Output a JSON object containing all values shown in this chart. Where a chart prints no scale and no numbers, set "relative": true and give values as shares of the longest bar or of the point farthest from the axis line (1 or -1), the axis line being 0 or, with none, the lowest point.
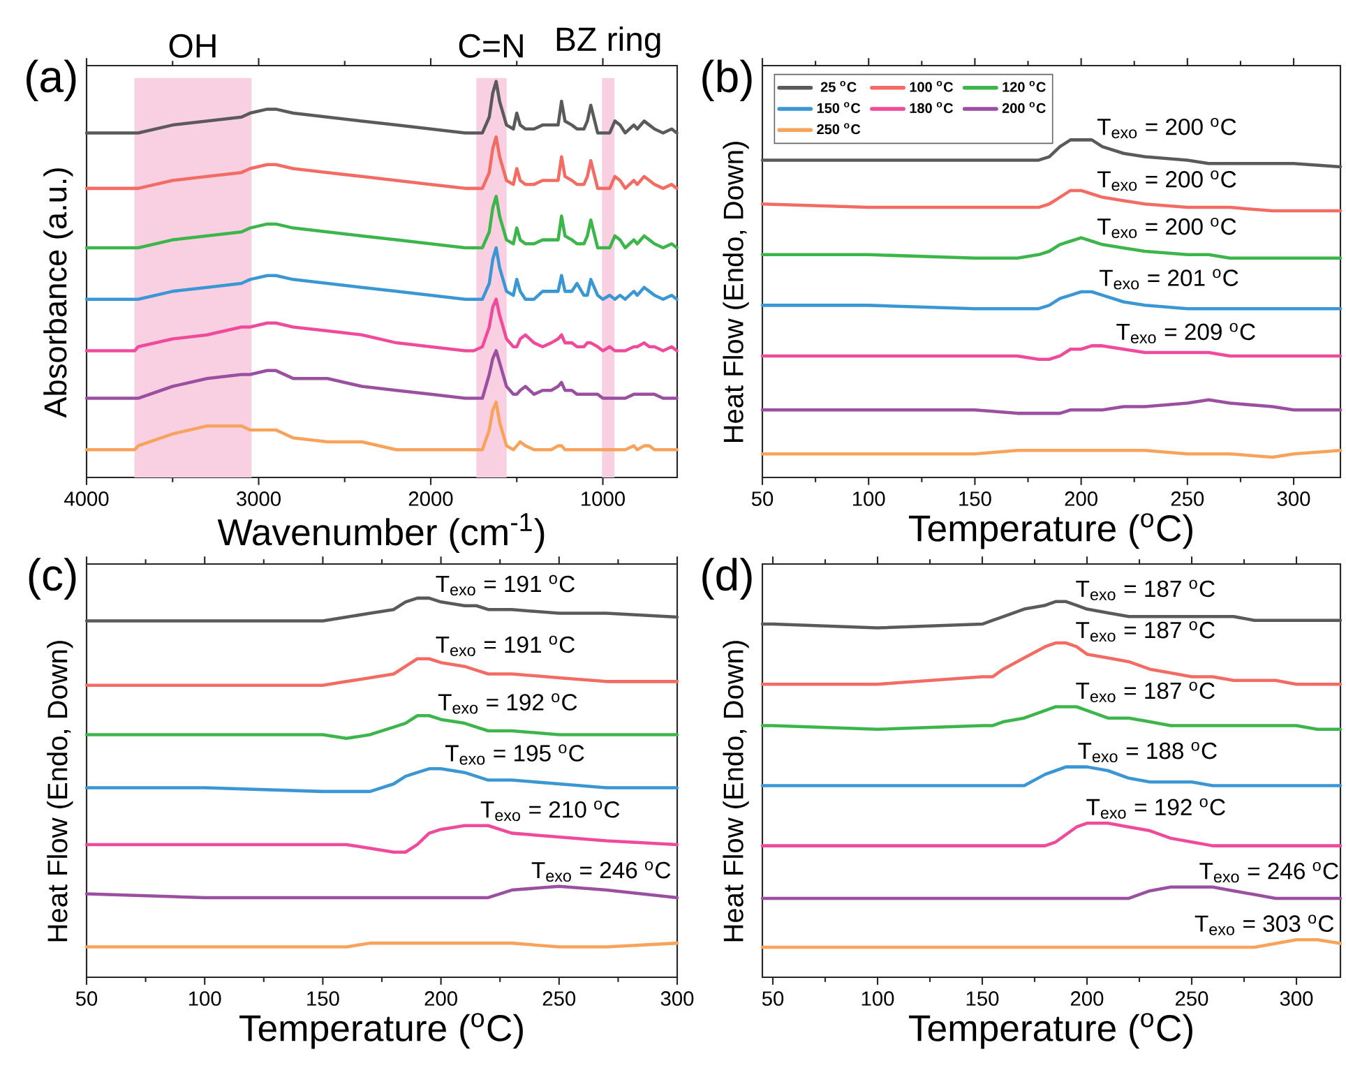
{
  "chart_data": [
    {
      "type": "line",
      "title": "(a)",
      "xlabel": "Wavenumber (cm$^{-1}$)",
      "ylabel": "Absorbance (a.u.)",
      "relative": true,
      "tick_labels": "x",
      "xlim": [
        4000,
        568
      ],
      "xticks": [
        4000,
        3000,
        2000,
        1000
      ],
      "x": [
        4000,
        3720,
        3700,
        3500,
        3300,
        3100,
        3050,
        2950,
        2900,
        2800,
        2600,
        2400,
        2200,
        2000,
        1800,
        1750,
        1700,
        1660,
        1640,
        1620,
        1600,
        1560,
        1520,
        1500,
        1480,
        1450,
        1400,
        1350,
        1300,
        1260,
        1240,
        1220,
        1180,
        1150,
        1110,
        1090,
        1070,
        1030,
        1000,
        960,
        930,
        900,
        870,
        820,
        800,
        760,
        730,
        700,
        650,
        600,
        570
      ],
      "bands": [
        {
          "axis": "x",
          "from": 3722,
          "to": 3041,
          "label": "OH",
          "color": "#f8d0e2"
        },
        {
          "axis": "x",
          "from": 1735,
          "to": 1559,
          "label": "C=N",
          "color": "#f8d0e2"
        },
        {
          "axis": "x",
          "from": 1005,
          "to": 932,
          "label": "BZ ring",
          "color": "#f8d0e2"
        }
      ],
      "series": [
        {
          "color": "#5a5a5a",
          "values": [
            0.87,
            0.87,
            0.87,
            0.89,
            0.9,
            0.91,
            0.92,
            0.93,
            0.93,
            0.92,
            0.91,
            0.9,
            0.89,
            0.88,
            0.87,
            0.87,
            0.87,
            0.91,
            0.97,
            1.0,
            0.95,
            0.89,
            0.88,
            0.92,
            0.89,
            0.88,
            0.88,
            0.89,
            0.89,
            0.89,
            0.95,
            0.9,
            0.89,
            0.88,
            0.88,
            0.9,
            0.94,
            0.87,
            0.87,
            0.87,
            0.9,
            0.89,
            0.87,
            0.89,
            0.88,
            0.9,
            0.89,
            0.88,
            0.87,
            0.88,
            0.87
          ]
        },
        {
          "color": "#f26c64",
          "values": [
            0.73,
            0.73,
            0.73,
            0.75,
            0.76,
            0.77,
            0.78,
            0.79,
            0.79,
            0.78,
            0.77,
            0.76,
            0.75,
            0.74,
            0.73,
            0.73,
            0.73,
            0.77,
            0.83,
            0.86,
            0.81,
            0.75,
            0.74,
            0.78,
            0.75,
            0.74,
            0.74,
            0.75,
            0.75,
            0.75,
            0.81,
            0.76,
            0.75,
            0.74,
            0.74,
            0.76,
            0.8,
            0.73,
            0.73,
            0.73,
            0.76,
            0.75,
            0.73,
            0.75,
            0.74,
            0.76,
            0.75,
            0.74,
            0.73,
            0.74,
            0.73
          ]
        },
        {
          "color": "#3cb54a",
          "values": [
            0.58,
            0.58,
            0.58,
            0.6,
            0.61,
            0.62,
            0.63,
            0.64,
            0.64,
            0.63,
            0.62,
            0.61,
            0.6,
            0.59,
            0.58,
            0.58,
            0.58,
            0.62,
            0.68,
            0.71,
            0.66,
            0.6,
            0.59,
            0.63,
            0.6,
            0.59,
            0.59,
            0.6,
            0.6,
            0.6,
            0.66,
            0.61,
            0.6,
            0.59,
            0.59,
            0.61,
            0.65,
            0.58,
            0.58,
            0.58,
            0.61,
            0.6,
            0.58,
            0.6,
            0.59,
            0.61,
            0.6,
            0.59,
            0.58,
            0.59,
            0.58
          ]
        },
        {
          "color": "#3b97d3",
          "values": [
            0.45,
            0.45,
            0.45,
            0.47,
            0.48,
            0.49,
            0.5,
            0.51,
            0.51,
            0.5,
            0.49,
            0.48,
            0.47,
            0.46,
            0.45,
            0.45,
            0.45,
            0.49,
            0.55,
            0.58,
            0.53,
            0.47,
            0.46,
            0.5,
            0.47,
            0.45,
            0.45,
            0.47,
            0.47,
            0.47,
            0.51,
            0.47,
            0.47,
            0.49,
            0.46,
            0.46,
            0.5,
            0.46,
            0.45,
            0.46,
            0.45,
            0.46,
            0.45,
            0.47,
            0.46,
            0.48,
            0.47,
            0.46,
            0.45,
            0.46,
            0.45
          ]
        },
        {
          "color": "#ef4a9b",
          "values": [
            0.32,
            0.32,
            0.33,
            0.35,
            0.36,
            0.38,
            0.38,
            0.39,
            0.39,
            0.38,
            0.37,
            0.36,
            0.34,
            0.33,
            0.32,
            0.32,
            0.33,
            0.38,
            0.43,
            0.45,
            0.41,
            0.35,
            0.33,
            0.33,
            0.35,
            0.36,
            0.34,
            0.33,
            0.34,
            0.35,
            0.36,
            0.34,
            0.34,
            0.33,
            0.33,
            0.34,
            0.34,
            0.33,
            0.32,
            0.33,
            0.32,
            0.32,
            0.32,
            0.33,
            0.33,
            0.34,
            0.33,
            0.33,
            0.32,
            0.33,
            0.32
          ]
        },
        {
          "color": "#9b4fa0",
          "values": [
            0.2,
            0.2,
            0.2,
            0.23,
            0.25,
            0.26,
            0.26,
            0.27,
            0.27,
            0.25,
            0.25,
            0.23,
            0.22,
            0.21,
            0.2,
            0.2,
            0.2,
            0.26,
            0.3,
            0.32,
            0.29,
            0.23,
            0.21,
            0.21,
            0.22,
            0.23,
            0.21,
            0.22,
            0.22,
            0.23,
            0.24,
            0.22,
            0.22,
            0.21,
            0.21,
            0.21,
            0.21,
            0.21,
            0.2,
            0.2,
            0.2,
            0.2,
            0.2,
            0.21,
            0.21,
            0.21,
            0.21,
            0.21,
            0.2,
            0.2,
            0.2
          ]
        },
        {
          "color": "#f7a35c",
          "values": [
            0.07,
            0.07,
            0.08,
            0.11,
            0.13,
            0.13,
            0.12,
            0.12,
            0.12,
            0.1,
            0.09,
            0.09,
            0.07,
            0.07,
            0.07,
            0.07,
            0.07,
            0.12,
            0.17,
            0.19,
            0.14,
            0.08,
            0.07,
            0.08,
            0.09,
            0.08,
            0.07,
            0.07,
            0.07,
            0.08,
            0.08,
            0.07,
            0.07,
            0.07,
            0.07,
            0.07,
            0.07,
            0.07,
            0.07,
            0.07,
            0.07,
            0.07,
            0.07,
            0.08,
            0.07,
            0.08,
            0.08,
            0.07,
            0.07,
            0.07,
            0.07
          ]
        }
      ]
    },
    {
      "type": "line",
      "title": "(b)",
      "xlabel": "Temperature ($^{o}$C)",
      "ylabel": "Heat Flow (Endo, Down)",
      "relative": true,
      "tick_labels": "x",
      "legend": "top left",
      "xlim": [
        50,
        322
      ],
      "xticks": [
        50,
        100,
        150,
        200,
        250,
        300
      ],
      "x": [
        50,
        100,
        150,
        170,
        180,
        185,
        190,
        195,
        200,
        205,
        210,
        220,
        230,
        250,
        260,
        270,
        290,
        300,
        322
      ],
      "series": [
        {
          "name": "25 $^{o}$C",
          "color": "#5a5a5a",
          "values": [
            0.94,
            0.94,
            0.94,
            0.94,
            0.94,
            0.95,
            0.98,
            1.0,
            1.0,
            1.0,
            0.98,
            0.96,
            0.95,
            0.94,
            0.93,
            0.93,
            0.93,
            0.93,
            0.92
          ]
        },
        {
          "name": "100 $^{o}$C",
          "color": "#f26c64",
          "values": [
            0.81,
            0.8,
            0.8,
            0.8,
            0.8,
            0.81,
            0.83,
            0.85,
            0.85,
            0.84,
            0.83,
            0.82,
            0.81,
            0.8,
            0.8,
            0.8,
            0.79,
            0.79,
            0.79
          ]
        },
        {
          "name": "120 $^{o}$C",
          "color": "#3cb54a",
          "values": [
            0.66,
            0.66,
            0.65,
            0.65,
            0.66,
            0.67,
            0.69,
            0.7,
            0.71,
            0.7,
            0.69,
            0.68,
            0.67,
            0.66,
            0.66,
            0.65,
            0.65,
            0.65,
            0.65
          ]
        },
        {
          "name": "150 $^{o}$C",
          "color": "#3b97d3",
          "values": [
            0.51,
            0.51,
            0.5,
            0.5,
            0.5,
            0.51,
            0.53,
            0.54,
            0.55,
            0.55,
            0.54,
            0.52,
            0.51,
            0.5,
            0.5,
            0.5,
            0.5,
            0.5,
            0.5
          ]
        },
        {
          "name": "180 $^{o}$C",
          "color": "#ef4a9b",
          "values": [
            0.36,
            0.36,
            0.36,
            0.36,
            0.35,
            0.35,
            0.36,
            0.38,
            0.38,
            0.39,
            0.39,
            0.38,
            0.37,
            0.37,
            0.37,
            0.36,
            0.36,
            0.36,
            0.36
          ]
        },
        {
          "name": "200 $^{o}$C",
          "color": "#9b4fa0",
          "values": [
            0.2,
            0.2,
            0.2,
            0.19,
            0.19,
            0.19,
            0.19,
            0.2,
            0.2,
            0.2,
            0.2,
            0.21,
            0.21,
            0.22,
            0.23,
            0.22,
            0.21,
            0.2,
            0.2
          ]
        },
        {
          "name": "250 $^{o}$C",
          "color": "#f7a35c",
          "values": [
            0.07,
            0.07,
            0.07,
            0.08,
            0.08,
            0.08,
            0.08,
            0.08,
            0.08,
            0.08,
            0.08,
            0.08,
            0.08,
            0.07,
            0.07,
            0.07,
            0.06,
            0.07,
            0.08
          ]
        }
      ],
      "annotations": [
        {
          "text": "T$_{exo}$ = 200 $^{o}$C",
          "x": 200,
          "y": 1.0
        },
        {
          "text": "T$_{exo}$ = 200 $^{o}$C",
          "x": 200,
          "y": 0.85
        },
        {
          "text": "T$_{exo}$ = 200 $^{o}$C",
          "x": 200,
          "y": 0.71
        },
        {
          "text": "T$_{exo}$ = 201 $^{o}$C",
          "x": 201,
          "y": 0.55
        },
        {
          "text": "T$_{exo}$ = 209 $^{o}$C",
          "x": 209,
          "y": 0.39
        }
      ]
    },
    {
      "type": "line",
      "title": "(c)",
      "xlabel": "Temperature ($^{o}$C)",
      "ylabel": "Heat Flow (Endo, Down)",
      "relative": true,
      "tick_labels": "x",
      "xlim": [
        50,
        300
      ],
      "xticks": [
        50,
        100,
        150,
        200,
        250,
        300
      ],
      "x": [
        50,
        100,
        150,
        160,
        170,
        180,
        185,
        190,
        195,
        200,
        210,
        215,
        220,
        230,
        250,
        270,
        300
      ],
      "series": [
        {
          "color": "#5a5a5a",
          "values": [
            0.94,
            0.94,
            0.94,
            0.95,
            0.96,
            0.97,
            0.99,
            1.0,
            1.0,
            0.99,
            0.98,
            0.98,
            0.97,
            0.97,
            0.96,
            0.96,
            0.95
          ]
        },
        {
          "color": "#f26c64",
          "values": [
            0.77,
            0.77,
            0.77,
            0.78,
            0.79,
            0.8,
            0.82,
            0.84,
            0.84,
            0.83,
            0.82,
            0.81,
            0.8,
            0.8,
            0.79,
            0.78,
            0.78
          ]
        },
        {
          "color": "#3cb54a",
          "values": [
            0.64,
            0.64,
            0.64,
            0.63,
            0.64,
            0.66,
            0.67,
            0.69,
            0.69,
            0.68,
            0.67,
            0.66,
            0.65,
            0.65,
            0.64,
            0.64,
            0.64
          ]
        },
        {
          "color": "#3b97d3",
          "values": [
            0.5,
            0.5,
            0.49,
            0.49,
            0.49,
            0.51,
            0.53,
            0.54,
            0.55,
            0.55,
            0.54,
            0.53,
            0.52,
            0.52,
            0.51,
            0.5,
            0.5
          ]
        },
        {
          "color": "#ef4a9b",
          "values": [
            0.35,
            0.35,
            0.35,
            0.35,
            0.34,
            0.33,
            0.33,
            0.35,
            0.38,
            0.39,
            0.4,
            0.4,
            0.4,
            0.38,
            0.37,
            0.36,
            0.35
          ]
        },
        {
          "color": "#9b4fa0",
          "values": [
            0.22,
            0.21,
            0.21,
            0.21,
            0.21,
            0.21,
            0.21,
            0.21,
            0.21,
            0.21,
            0.21,
            0.21,
            0.21,
            0.23,
            0.24,
            0.23,
            0.21
          ]
        },
        {
          "color": "#f7a35c",
          "values": [
            0.08,
            0.08,
            0.08,
            0.08,
            0.09,
            0.09,
            0.09,
            0.09,
            0.09,
            0.09,
            0.09,
            0.09,
            0.09,
            0.09,
            0.08,
            0.08,
            0.09
          ]
        }
      ],
      "annotations": [
        {
          "text": "T$_{exo}$ = 191 $^{o}$C",
          "x": 191,
          "y": 1.0
        },
        {
          "text": "T$_{exo}$ = 191 $^{o}$C",
          "x": 191,
          "y": 0.84
        },
        {
          "text": "T$_{exo}$ = 192 $^{o}$C",
          "x": 192,
          "y": 0.69
        },
        {
          "text": "T$_{exo}$ = 195 $^{o}$C",
          "x": 195,
          "y": 0.55
        },
        {
          "text": "T$_{exo}$ = 210 $^{o}$C",
          "x": 210,
          "y": 0.4
        },
        {
          "text": "T$_{exo}$ = 246 $^{o}$C",
          "x": 246,
          "y": 0.24
        }
      ]
    },
    {
      "type": "line",
      "title": "(d)",
      "xlabel": "Temperature ($^{o}$C)",
      "ylabel": "Heat Flow (Endo, Down)",
      "relative": true,
      "tick_labels": "x",
      "xlim": [
        45,
        321
      ],
      "xticks": [
        50,
        100,
        150,
        200,
        250,
        300
      ],
      "x": [
        45,
        50,
        100,
        150,
        155,
        160,
        170,
        180,
        185,
        190,
        195,
        200,
        210,
        220,
        230,
        240,
        250,
        260,
        270,
        280,
        290,
        300,
        310,
        321
      ],
      "series": [
        {
          "color": "#5a5a5a",
          "values": [
            0.94,
            0.94,
            0.93,
            0.94,
            0.95,
            0.96,
            0.98,
            0.99,
            1.0,
            1.0,
            0.99,
            0.98,
            0.97,
            0.96,
            0.96,
            0.96,
            0.96,
            0.96,
            0.96,
            0.95,
            0.95,
            0.95,
            0.95,
            0.95
          ]
        },
        {
          "color": "#f26c64",
          "values": [
            0.78,
            0.78,
            0.78,
            0.8,
            0.8,
            0.82,
            0.85,
            0.88,
            0.89,
            0.89,
            0.88,
            0.86,
            0.85,
            0.84,
            0.82,
            0.81,
            0.8,
            0.8,
            0.79,
            0.79,
            0.79,
            0.78,
            0.78,
            0.78
          ]
        },
        {
          "color": "#3cb54a",
          "values": [
            0.67,
            0.67,
            0.66,
            0.67,
            0.67,
            0.68,
            0.69,
            0.71,
            0.72,
            0.72,
            0.72,
            0.71,
            0.69,
            0.69,
            0.68,
            0.67,
            0.67,
            0.67,
            0.67,
            0.67,
            0.67,
            0.67,
            0.66,
            0.66
          ]
        },
        {
          "color": "#3b97d3",
          "values": [
            0.51,
            0.51,
            0.51,
            0.51,
            0.51,
            0.51,
            0.51,
            0.54,
            0.55,
            0.56,
            0.56,
            0.56,
            0.55,
            0.53,
            0.52,
            0.52,
            0.52,
            0.51,
            0.51,
            0.51,
            0.51,
            0.51,
            0.51,
            0.51
          ]
        },
        {
          "color": "#ef4a9b",
          "values": [
            0.35,
            0.35,
            0.35,
            0.35,
            0.35,
            0.35,
            0.35,
            0.35,
            0.36,
            0.38,
            0.4,
            0.41,
            0.41,
            0.4,
            0.39,
            0.37,
            0.36,
            0.35,
            0.35,
            0.35,
            0.35,
            0.35,
            0.35,
            0.35
          ]
        },
        {
          "color": "#9b4fa0",
          "values": [
            0.21,
            0.21,
            0.21,
            0.21,
            0.21,
            0.21,
            0.21,
            0.21,
            0.21,
            0.21,
            0.21,
            0.21,
            0.21,
            0.21,
            0.23,
            0.24,
            0.24,
            0.24,
            0.23,
            0.22,
            0.21,
            0.21,
            0.21,
            0.21
          ]
        },
        {
          "color": "#f7a35c",
          "values": [
            0.08,
            0.08,
            0.08,
            0.08,
            0.08,
            0.08,
            0.08,
            0.08,
            0.08,
            0.08,
            0.08,
            0.08,
            0.08,
            0.08,
            0.08,
            0.08,
            0.08,
            0.08,
            0.08,
            0.08,
            0.09,
            0.1,
            0.1,
            0.09
          ]
        }
      ],
      "annotations": [
        {
          "text": "T$_{exo}$ = 187 $^{o}$C",
          "x": 187,
          "y": 1.0
        },
        {
          "text": "T$_{exo}$ = 187 $^{o}$C",
          "x": 187,
          "y": 0.89
        },
        {
          "text": "T$_{exo}$ = 187 $^{o}$C",
          "x": 187,
          "y": 0.72
        },
        {
          "text": "T$_{exo}$ = 188 $^{o}$C",
          "x": 188,
          "y": 0.56
        },
        {
          "text": "T$_{exo}$ = 192 $^{o}$C",
          "x": 192,
          "y": 0.41
        },
        {
          "text": "T$_{exo}$ = 246 $^{o}$C",
          "x": 246,
          "y": 0.24
        },
        {
          "text": "T$_{exo}$ = 303 $^{o}$C",
          "x": 303,
          "y": 0.1
        }
      ]
    }
  ]
}
